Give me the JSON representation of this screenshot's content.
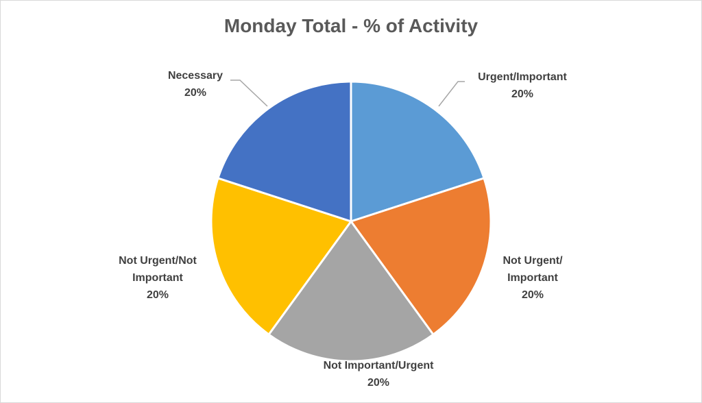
{
  "chart_data": {
    "type": "pie",
    "title": "Monday Total - % of Activity",
    "slices": [
      {
        "label_lines": [
          "Urgent/Important",
          "20%"
        ],
        "value": 20,
        "color": "#5b9bd5"
      },
      {
        "label_lines": [
          "Not Urgent/",
          "Important",
          "20%"
        ],
        "value": 20,
        "color": "#ed7d31"
      },
      {
        "label_lines": [
          "Not Important/Urgent",
          "20%"
        ],
        "value": 20,
        "color": "#a5a5a5"
      },
      {
        "label_lines": [
          "Not Urgent/Not",
          "Important",
          "20%"
        ],
        "value": 20,
        "color": "#ffc000"
      },
      {
        "label_lines": [
          "Necessary",
          "20%"
        ],
        "value": 20,
        "color": "#4472c4"
      }
    ]
  }
}
